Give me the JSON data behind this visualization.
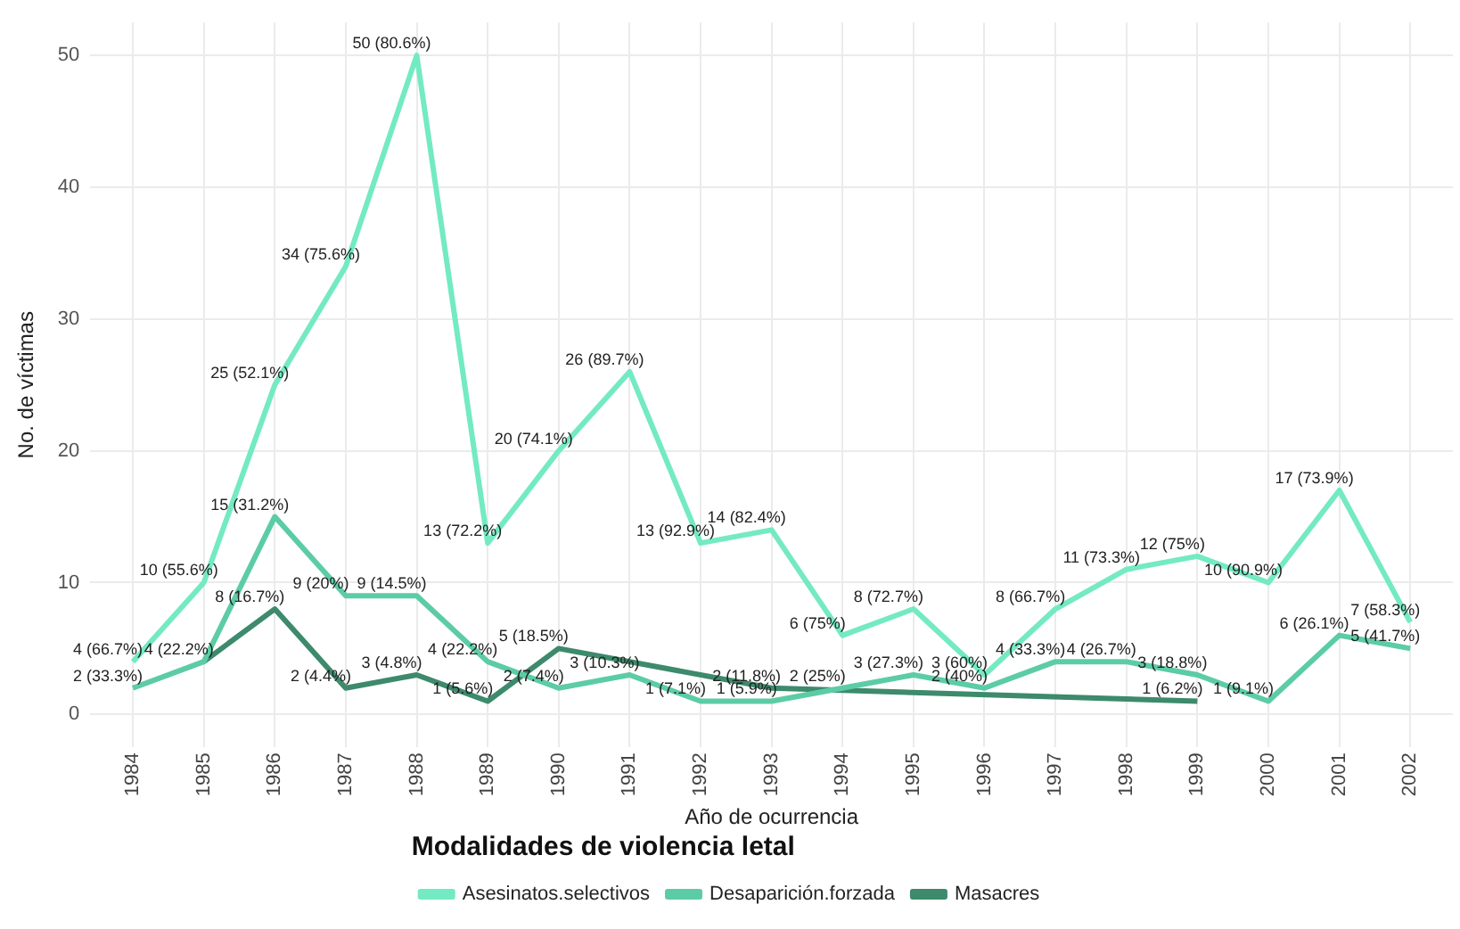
{
  "chart_data": {
    "type": "line",
    "xlabel": "Año de ocurrencia",
    "ylabel": "No. de víctimas",
    "legend_title": "Modalidades de violencia letal",
    "x": [
      1984,
      1985,
      1986,
      1987,
      1988,
      1989,
      1990,
      1991,
      1992,
      1993,
      1994,
      1995,
      1996,
      1997,
      1998,
      1999,
      2000,
      2001,
      2002
    ],
    "xlim": [
      1983.4,
      2002.6
    ],
    "xticks": [
      1984,
      1985,
      1986,
      1987,
      1988,
      1989,
      1990,
      1991,
      1992,
      1993,
      1994,
      1995,
      1996,
      1997,
      1998,
      1999,
      2000,
      2001,
      2002
    ],
    "ylim": [
      -2.5,
      52.5
    ],
    "yticks": [
      0,
      10,
      20,
      30,
      40,
      50
    ],
    "grid": true,
    "legend": "bottom",
    "series": [
      {
        "name": "Asesinatos.selectivos",
        "color": "#73eac3",
        "values": [
          4,
          10,
          25,
          34,
          50,
          13,
          20,
          26,
          13,
          14,
          6,
          8,
          3,
          8,
          11,
          12,
          10,
          17,
          7
        ],
        "value_labels": [
          "4 (66.7%)",
          "10 (55.6%)",
          "25 (52.1%)",
          "34 (75.6%)",
          "50 (80.6%)",
          "13 (72.2%)",
          "20 (74.1%)",
          "26 (89.7%)",
          "13 (92.9%)",
          "14 (82.4%)",
          "6 (75%)",
          "8 (72.7%)",
          "3 (60%)",
          "8 (66.7%)",
          "11 (73.3%)",
          "12 (75%)",
          "10 (90.9%)",
          "17 (73.9%)",
          "7 (58.3%)"
        ]
      },
      {
        "name": "Desaparición.forzada",
        "color": "#5ccca6",
        "values": [
          2,
          4,
          15,
          9,
          9,
          4,
          2,
          3,
          1,
          1,
          2,
          3,
          2,
          4,
          4,
          3,
          1,
          6,
          5
        ],
        "value_labels": [
          "2 (33.3%)",
          "4 (22.2%)",
          "15 (31.2%)",
          "9 (20%)",
          "9 (14.5%)",
          "4 (22.2%)",
          "2 (7.4%)",
          "3 (10.3%)",
          "1 (7.1%)",
          "1 (5.9%)",
          "2 (25%)",
          "3 (27.3%)",
          "2 (40%)",
          "4 (33.3%)",
          "4 (26.7%)",
          "3 (18.8%)",
          "1 (9.1%)",
          "6 (26.1%)",
          "5 (41.7%)"
        ]
      },
      {
        "name": "Masacres",
        "color": "#3d8a6c",
        "x": [
          1985,
          1986,
          1987,
          1988,
          1989,
          1990,
          1993,
          1999
        ],
        "values": [
          4,
          8,
          2,
          3,
          1,
          5,
          2,
          1
        ],
        "value_labels": [
          null,
          "8 (16.7%)",
          "2 (4.4%)",
          "3 (4.8%)",
          "1 (5.6%)",
          "5 (18.5%)",
          "2 (11.8%)",
          "1 (6.2%)"
        ]
      }
    ]
  }
}
